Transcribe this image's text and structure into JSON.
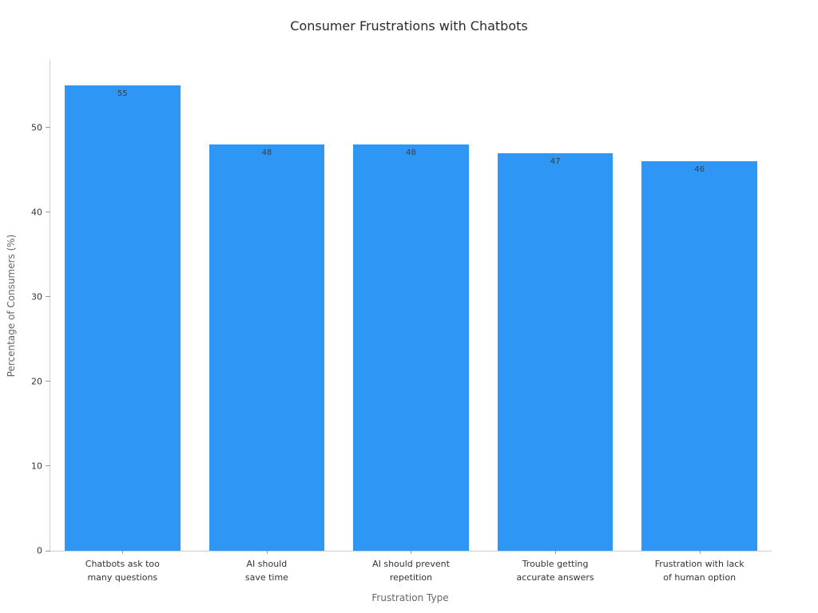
{
  "chart_data": {
    "type": "bar",
    "title": "Consumer Frustrations with Chatbots",
    "xlabel": "Frustration Type",
    "ylabel": "Percentage of Consumers (%)",
    "categories": [
      "Chatbots ask too\nmany questions",
      "AI should\nsave time",
      "AI should prevent\nrepetition",
      "Trouble getting\naccurate answers",
      "Frustration with lack\nof human option"
    ],
    "values": [
      55,
      48,
      48,
      47,
      46
    ],
    "value_labels": [
      "55",
      "48",
      "48",
      "47",
      "46"
    ],
    "yticks": [
      0,
      10,
      20,
      30,
      40,
      50
    ],
    "ylim": [
      0,
      58
    ],
    "grid": false,
    "legend": false,
    "bar_color": "#2E96F5",
    "value_label_color": "#3d3d3d",
    "tick_label_color": "#333333",
    "axis_label_color": "#666666",
    "title_color": "#2a2a2a",
    "spine_color": "#cfcfcf",
    "background_color": "#ffffff"
  }
}
